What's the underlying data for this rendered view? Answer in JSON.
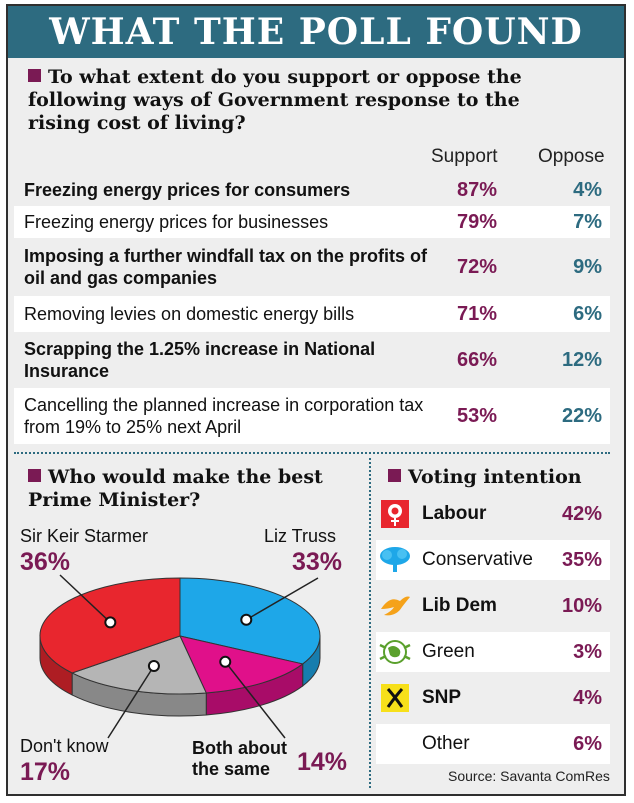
{
  "banner": "WHAT THE POLL FOUND",
  "question": "To what extent do you support or oppose the following ways of Government response to the rising cost of living?",
  "columns": {
    "support": "Support",
    "oppose": "Oppose"
  },
  "rows": [
    {
      "label": "Freezing energy prices for consumers",
      "support": "87%",
      "oppose": "4%"
    },
    {
      "label": "Freezing energy prices for businesses",
      "support": "79%",
      "oppose": "7%"
    },
    {
      "label": "Imposing a further windfall tax on the profits of oil and gas companies",
      "support": "72%",
      "oppose": "9%"
    },
    {
      "label": "Removing levies on domestic energy bills",
      "support": "71%",
      "oppose": "6%"
    },
    {
      "label": "Scrapping the 1.25% increase in National Insurance",
      "support": "66%",
      "oppose": "12%"
    },
    {
      "label": "Cancelling the planned increase in corporation tax from 19% to 25% next April",
      "support": "53%",
      "oppose": "22%"
    }
  ],
  "pm": {
    "title": "Who would make the best Prime Minister?",
    "slices": [
      {
        "name": "Sir Keir Starmer",
        "pct": "36%",
        "color": "#e8262e"
      },
      {
        "name": "Liz Truss",
        "pct": "33%",
        "color": "#1ea7e8"
      },
      {
        "name": "Both about the same",
        "pct": "14%",
        "color": "#e0108a"
      },
      {
        "name": "Don't know",
        "pct": "17%",
        "color": "#b5b5b5"
      }
    ]
  },
  "voting": {
    "title": "Voting intention",
    "parties": [
      {
        "name": "Labour",
        "pct": "42%",
        "icon": "rose-icon"
      },
      {
        "name": "Conservative",
        "pct": "35%",
        "icon": "tree-icon"
      },
      {
        "name": "Lib Dem",
        "pct": "10%",
        "icon": "bird-icon"
      },
      {
        "name": "Green",
        "pct": "3%",
        "icon": "globe-icon"
      },
      {
        "name": "SNP",
        "pct": "4%",
        "icon": "snp-icon"
      },
      {
        "name": "Other",
        "pct": "6%",
        "icon": ""
      }
    ]
  },
  "source": "Source: Savanta ComRes",
  "chart_data": [
    {
      "type": "table",
      "categories": [
        "Freezing energy prices for consumers",
        "Freezing energy prices for businesses",
        "Imposing a further windfall tax on the profits of oil and gas companies",
        "Removing levies on domestic energy bills",
        "Scrapping the 1.25% increase in National Insurance",
        "Cancelling the planned increase in corporation tax from 19% to 25% next April"
      ],
      "series": [
        {
          "name": "Support",
          "values": [
            87,
            79,
            72,
            71,
            66,
            53
          ]
        },
        {
          "name": "Oppose",
          "values": [
            4,
            7,
            9,
            6,
            12,
            22
          ]
        }
      ]
    },
    {
      "type": "pie",
      "title": "Who would make the best Prime Minister?",
      "categories": [
        "Sir Keir Starmer",
        "Liz Truss",
        "Both about the same",
        "Don't know"
      ],
      "values": [
        36,
        33,
        14,
        17
      ]
    },
    {
      "type": "table",
      "title": "Voting intention",
      "categories": [
        "Labour",
        "Conservative",
        "Lib Dem",
        "Green",
        "SNP",
        "Other"
      ],
      "values": [
        42,
        35,
        10,
        3,
        4,
        6
      ]
    }
  ]
}
